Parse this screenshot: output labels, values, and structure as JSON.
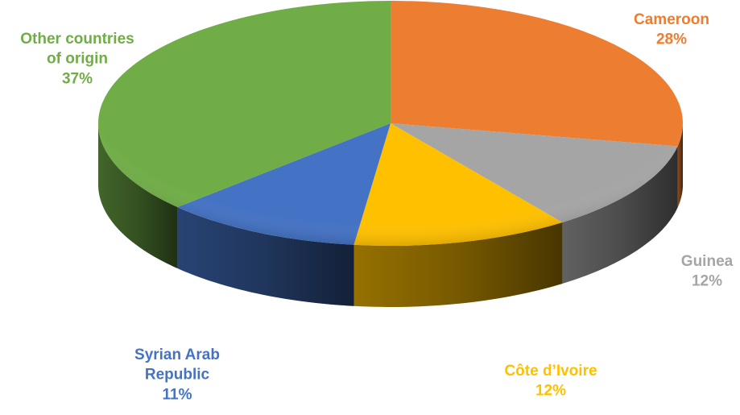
{
  "chart_data": {
    "type": "pie",
    "title": "",
    "style": "3d",
    "slices": [
      {
        "label": [
          "Cameroon"
        ],
        "value": 28,
        "value_label": "28%",
        "color": "#ED7D31"
      },
      {
        "label": [
          "Guinea"
        ],
        "value": 12,
        "value_label": "12%",
        "color": "#A5A5A5"
      },
      {
        "label": [
          "Côte d’Ivoire"
        ],
        "value": 12,
        "value_label": "12%",
        "color": "#FFC000"
      },
      {
        "label": [
          "Syrian Arab",
          "Republic"
        ],
        "value": 11,
        "value_label": "11%",
        "color": "#4472C4"
      },
      {
        "label": [
          "Other countries",
          "of origin"
        ],
        "value": 37,
        "value_label": "37%",
        "color": "#70AD47"
      }
    ]
  }
}
